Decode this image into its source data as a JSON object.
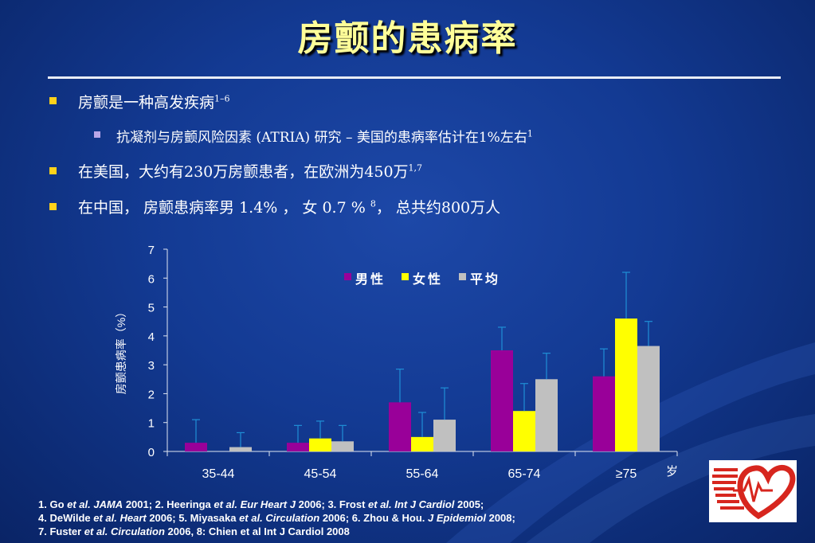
{
  "title": "房颤的患病率",
  "bullets": [
    {
      "text": "房颤是一种高发疾病",
      "sup": "1–6"
    },
    {
      "text": "抗凝剂与房颤风险因素 (ATRIA) 研究 – 美国的患病率估计在1%左右",
      "sup": "1"
    },
    {
      "text": "在美国，大约有230万房颤患者，在欧洲为450万",
      "sup": "1,7"
    },
    {
      "text_a": "在中国，  房颤患病率男 1.4% ，  女 0.7 % ",
      "sup": "8",
      "text_b": "，  总共约800万人"
    }
  ],
  "chart_data": {
    "type": "bar",
    "ylabel": "房颤患病率（%）",
    "xunit": "岁",
    "ylim": [
      0,
      7
    ],
    "yticks": [
      0,
      1,
      2,
      3,
      4,
      5,
      6,
      7
    ],
    "categories": [
      "35-44",
      "45-54",
      "55-64",
      "65-74",
      "≥75"
    ],
    "legend_position": "top",
    "series": [
      {
        "name": "男性",
        "color": "#990099",
        "values": [
          0.3,
          0.3,
          1.7,
          3.5,
          2.6
        ],
        "err_upper": [
          1.1,
          0.9,
          2.85,
          4.3,
          3.55
        ]
      },
      {
        "name": "女性",
        "color": "#ffff00",
        "values": [
          null,
          0.45,
          0.5,
          1.4,
          4.6
        ],
        "err_upper": [
          null,
          1.05,
          1.35,
          2.35,
          6.2
        ]
      },
      {
        "name": "平均",
        "color": "#c0c0c0",
        "values": [
          0.15,
          0.35,
          1.1,
          2.5,
          3.65
        ],
        "err_upper": [
          0.65,
          0.9,
          2.2,
          3.4,
          4.5
        ]
      }
    ],
    "error_bar_color": "#1f8fd6",
    "grid": false
  },
  "references": [
    [
      "1. Go ",
      "et al. JAMA",
      " 2001; 2. Heeringa ",
      "et al. Eur Heart J",
      " 2006; 3. Frost ",
      "et al. Int J Cardiol",
      " 2005;"
    ],
    [
      "4. DeWilde ",
      "et al. Heart",
      " 2006; 5. Miyasaka ",
      "et al. Circulation",
      " 2006; 6. Zhou & Hou. ",
      "J Epidemiol",
      " 2008;"
    ],
    [
      "7. Fuster ",
      "et al. Circulation",
      " 2006, 8: Chien et al Int J Cardiol 2008"
    ]
  ],
  "logo": {
    "icon": "heart-ecg-logo",
    "colors": [
      "#d7261e",
      "#ffffff"
    ]
  }
}
